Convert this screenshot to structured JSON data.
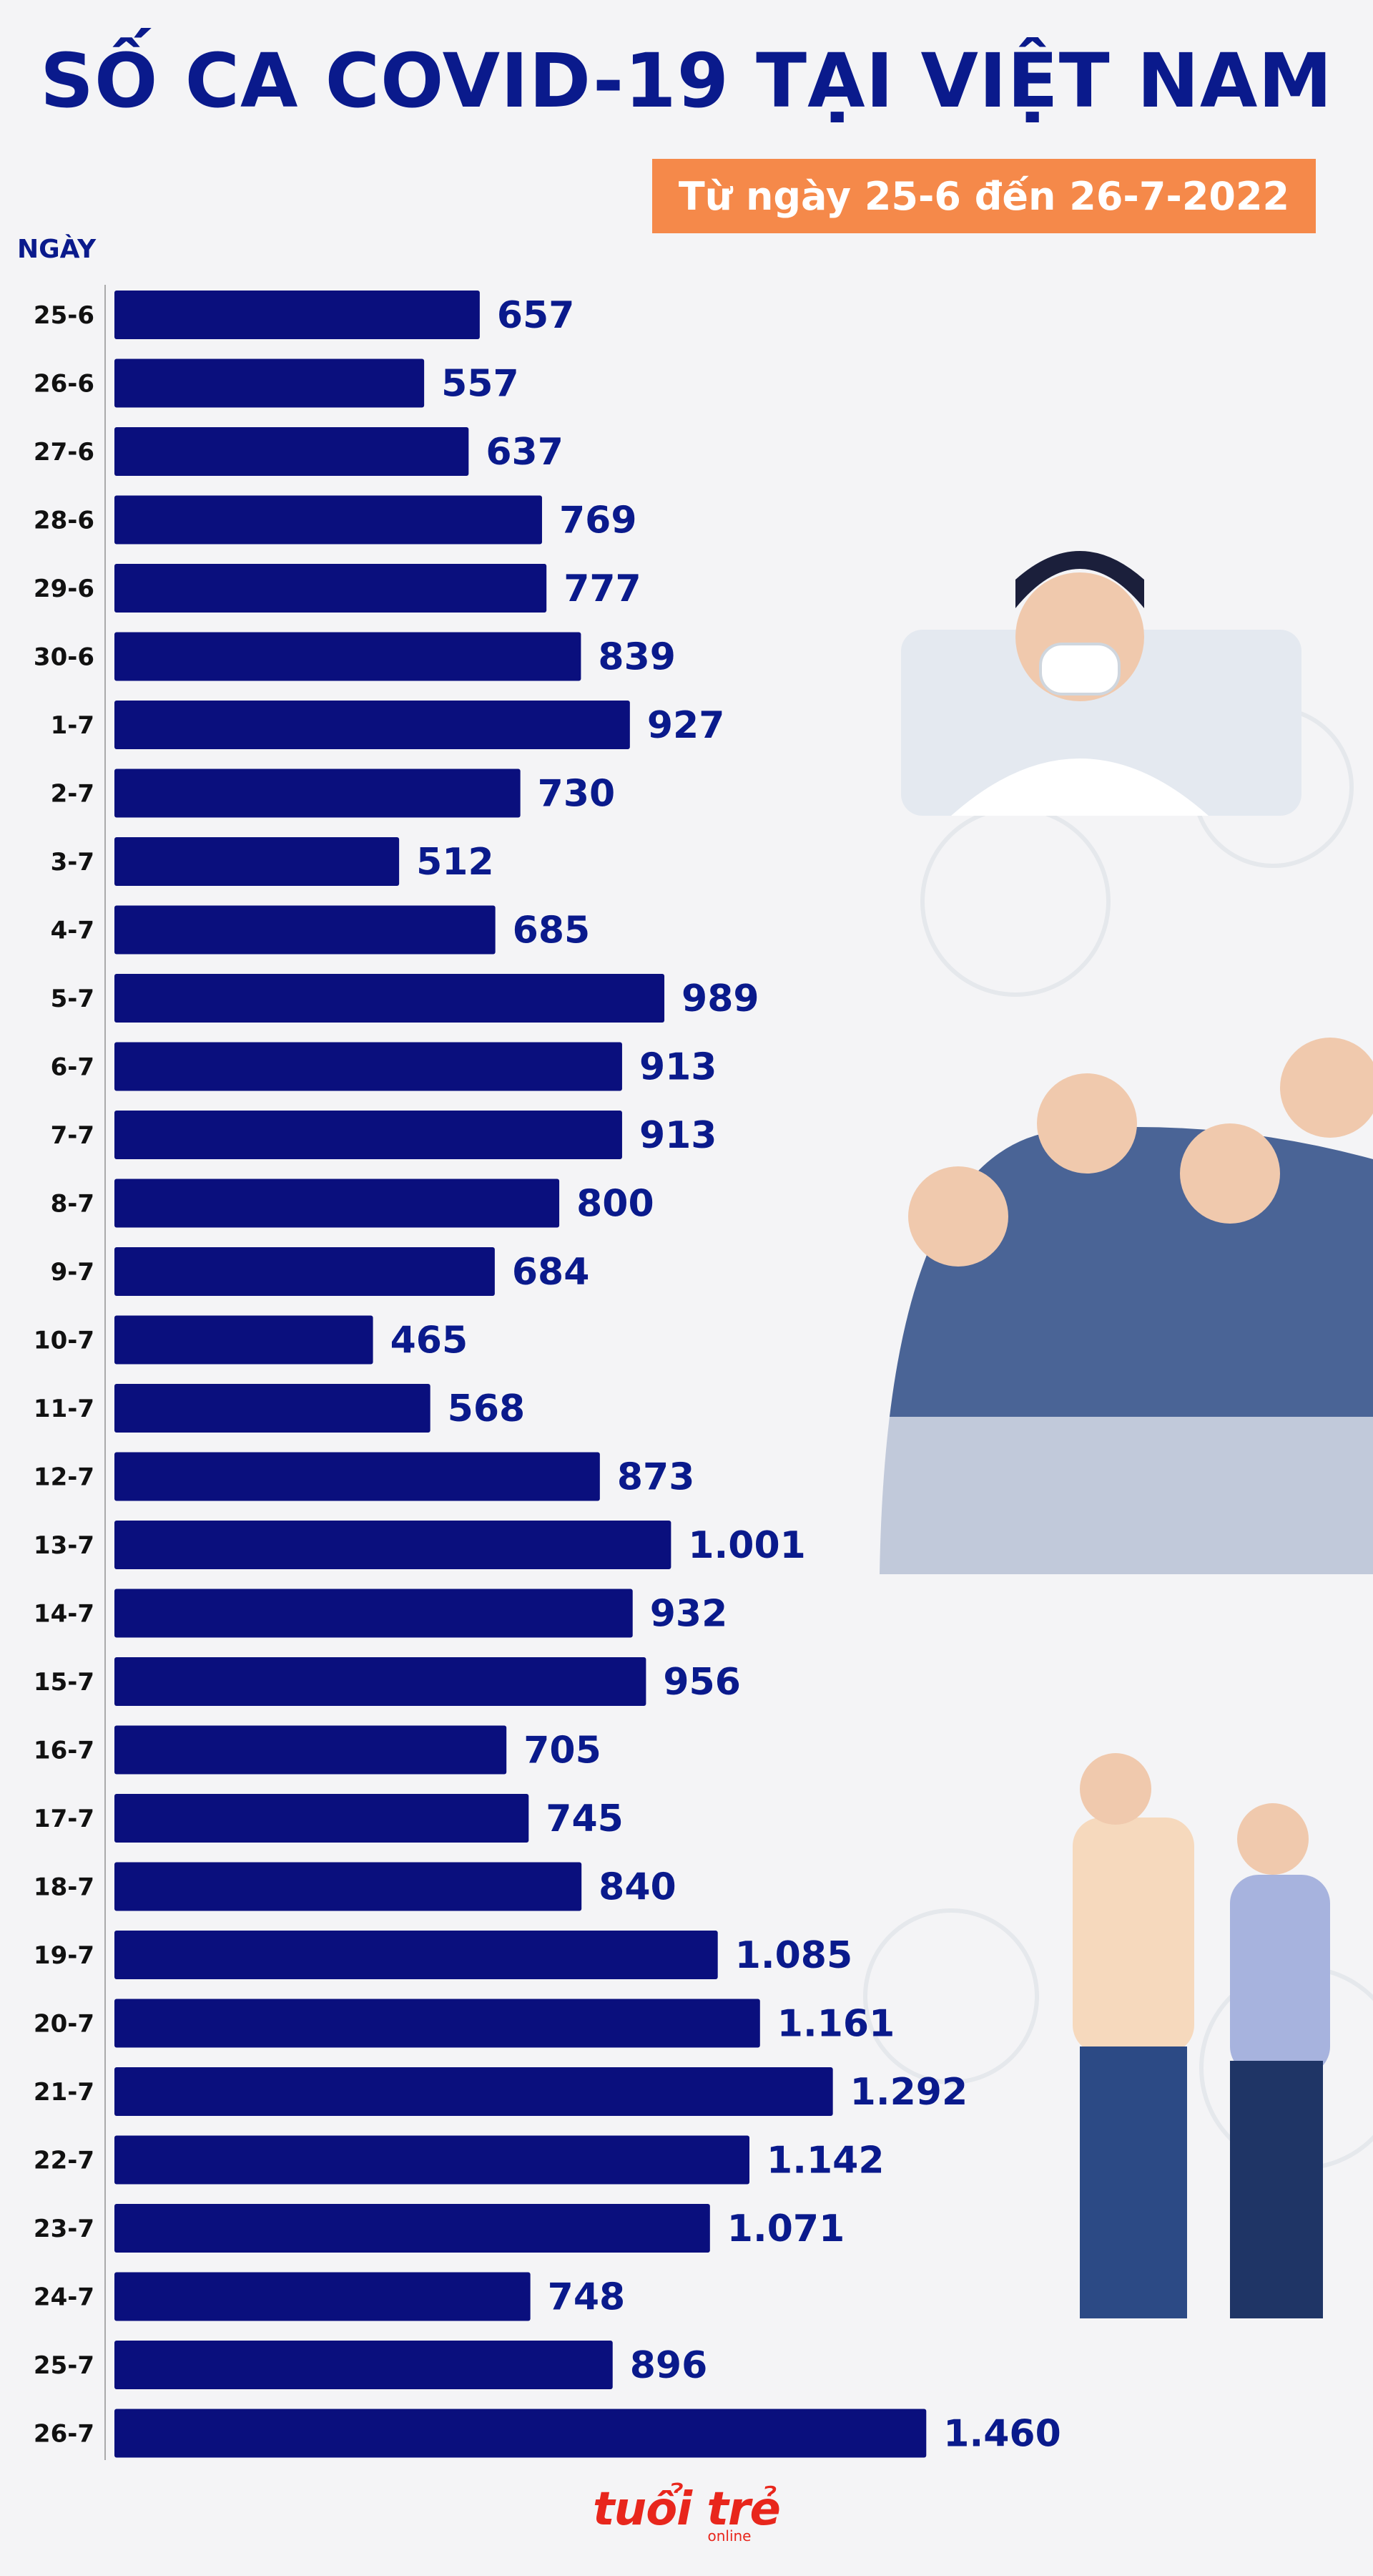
{
  "header": {
    "title": "SỐ CA COVID-19 TẠI VIỆT NAM",
    "subtitle": "Từ ngày 25-6 đến 26-7-2022"
  },
  "colors": {
    "bar": "#0a0f7d",
    "accent": "#f5894a",
    "title": "#0a1a8c",
    "brand": "#e8261c"
  },
  "chart_data": {
    "type": "bar",
    "orientation": "horizontal",
    "title": "SỐ CA COVID-19 TẠI VIỆT NAM",
    "subtitle": "Từ ngày 25-6 đến 26-7-2022",
    "ylabel": "NGÀY",
    "xlabel": "",
    "categories": [
      "25-6",
      "26-6",
      "27-6",
      "28-6",
      "29-6",
      "30-6",
      "1-7",
      "2-7",
      "3-7",
      "4-7",
      "5-7",
      "6-7",
      "7-7",
      "8-7",
      "9-7",
      "10-7",
      "11-7",
      "12-7",
      "13-7",
      "14-7",
      "15-7",
      "16-7",
      "17-7",
      "18-7",
      "19-7",
      "20-7",
      "21-7",
      "22-7",
      "23-7",
      "24-7",
      "25-7",
      "26-7"
    ],
    "values": [
      657,
      557,
      637,
      769,
      777,
      839,
      927,
      730,
      512,
      685,
      989,
      913,
      913,
      800,
      684,
      465,
      568,
      873,
      1001,
      932,
      956,
      705,
      745,
      840,
      1085,
      1161,
      1292,
      1142,
      1071,
      748,
      896,
      1460
    ],
    "value_labels": [
      "657",
      "557",
      "637",
      "769",
      "777",
      "839",
      "927",
      "730",
      "512",
      "685",
      "989",
      "913",
      "913",
      "800",
      "684",
      "465",
      "568",
      "873",
      "1.001",
      "932",
      "956",
      "705",
      "745",
      "840",
      "1.085",
      "1.161",
      "1.292",
      "1.142",
      "1.071",
      "748",
      "896",
      "1.460"
    ],
    "xlim": [
      0,
      1470
    ]
  },
  "logo": {
    "name": "tuổi trẻ",
    "sub": "online"
  }
}
